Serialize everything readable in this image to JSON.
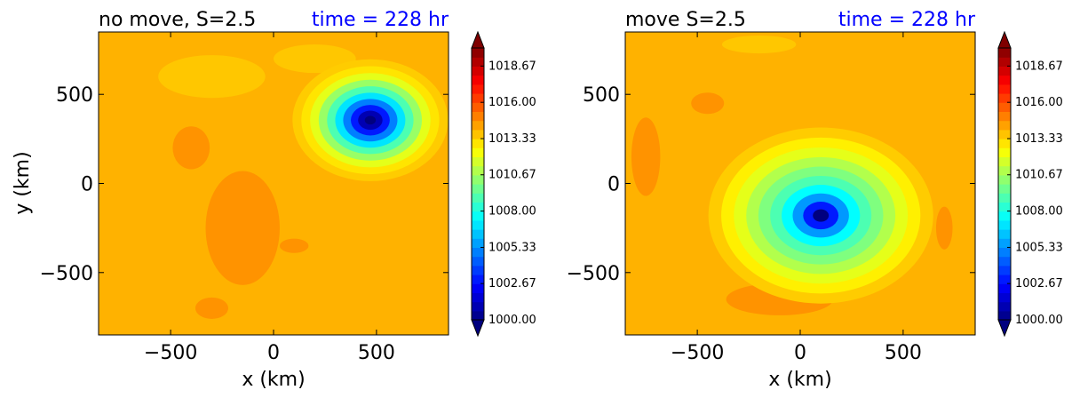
{
  "chart_data": [
    {
      "type": "heatmap",
      "subtype": "filled-contour",
      "title_left": "no move, S=2.5",
      "title_right": "time = 228 hr",
      "xlabel": "x (km)",
      "ylabel": "y (km)",
      "xlim": [
        -850,
        850
      ],
      "ylim": [
        -850,
        850
      ],
      "xticks": [
        -500,
        0,
        500
      ],
      "yticks": [
        -500,
        0,
        500
      ],
      "xtick_labels": [
        "−500",
        "0",
        "500"
      ],
      "ytick_labels": [
        "−500",
        "0",
        "500"
      ],
      "background_level": 1014.0,
      "vortex": {
        "center_x": 470,
        "center_y": 355,
        "min_pressure": 1000.0,
        "ring_levels": [
          1013.5,
          1013.0,
          1012.0,
          1010.5,
          1009.0,
          1007.0,
          1005.0,
          1003.0,
          1001.0,
          1000.0
        ],
        "outer_radius_km": 360
      },
      "colorbar": {
        "min": 1000.0,
        "max": 1020.0,
        "extend": "both",
        "tick_values": [
          1000.0,
          1002.67,
          1005.33,
          1008.0,
          1010.67,
          1013.33,
          1016.0,
          1018.67
        ],
        "tick_labels": [
          "1000.00",
          "1002.67",
          "1005.33",
          "1008.00",
          "1010.67",
          "1013.33",
          "1016.00",
          "1018.67"
        ]
      }
    },
    {
      "type": "heatmap",
      "subtype": "filled-contour",
      "title_left": "move S=2.5",
      "title_right": "time = 228 hr",
      "xlabel": "x (km)",
      "ylabel": "",
      "xlim": [
        -850,
        850
      ],
      "ylim": [
        -850,
        850
      ],
      "xticks": [
        -500,
        0,
        500
      ],
      "yticks": [
        -500,
        0,
        500
      ],
      "xtick_labels": [
        "−500",
        "0",
        "500"
      ],
      "ytick_labels": [
        "−500",
        "0",
        "500"
      ],
      "background_level": 1014.0,
      "vortex": {
        "center_x": 100,
        "center_y": -180,
        "min_pressure": 1000.0,
        "ring_levels": [
          1013.5,
          1012.8,
          1012.0,
          1011.0,
          1010.0,
          1009.0,
          1007.5,
          1005.5,
          1003.0,
          1000.0
        ],
        "outer_radius_km": 520
      },
      "colorbar": {
        "min": 1000.0,
        "max": 1020.0,
        "extend": "both",
        "tick_values": [
          1000.0,
          1002.67,
          1005.33,
          1008.0,
          1010.67,
          1013.33,
          1016.0,
          1018.67
        ],
        "tick_labels": [
          "1000.00",
          "1002.67",
          "1005.33",
          "1008.00",
          "1010.67",
          "1013.33",
          "1016.00",
          "1018.67"
        ]
      }
    }
  ],
  "colors": {
    "title_right": "#0000ff",
    "jet_stops": [
      "#00007f",
      "#0000ff",
      "#007fff",
      "#00ffff",
      "#7fff7f",
      "#ffff00",
      "#ff7f00",
      "#ff0000",
      "#7f0000"
    ]
  }
}
